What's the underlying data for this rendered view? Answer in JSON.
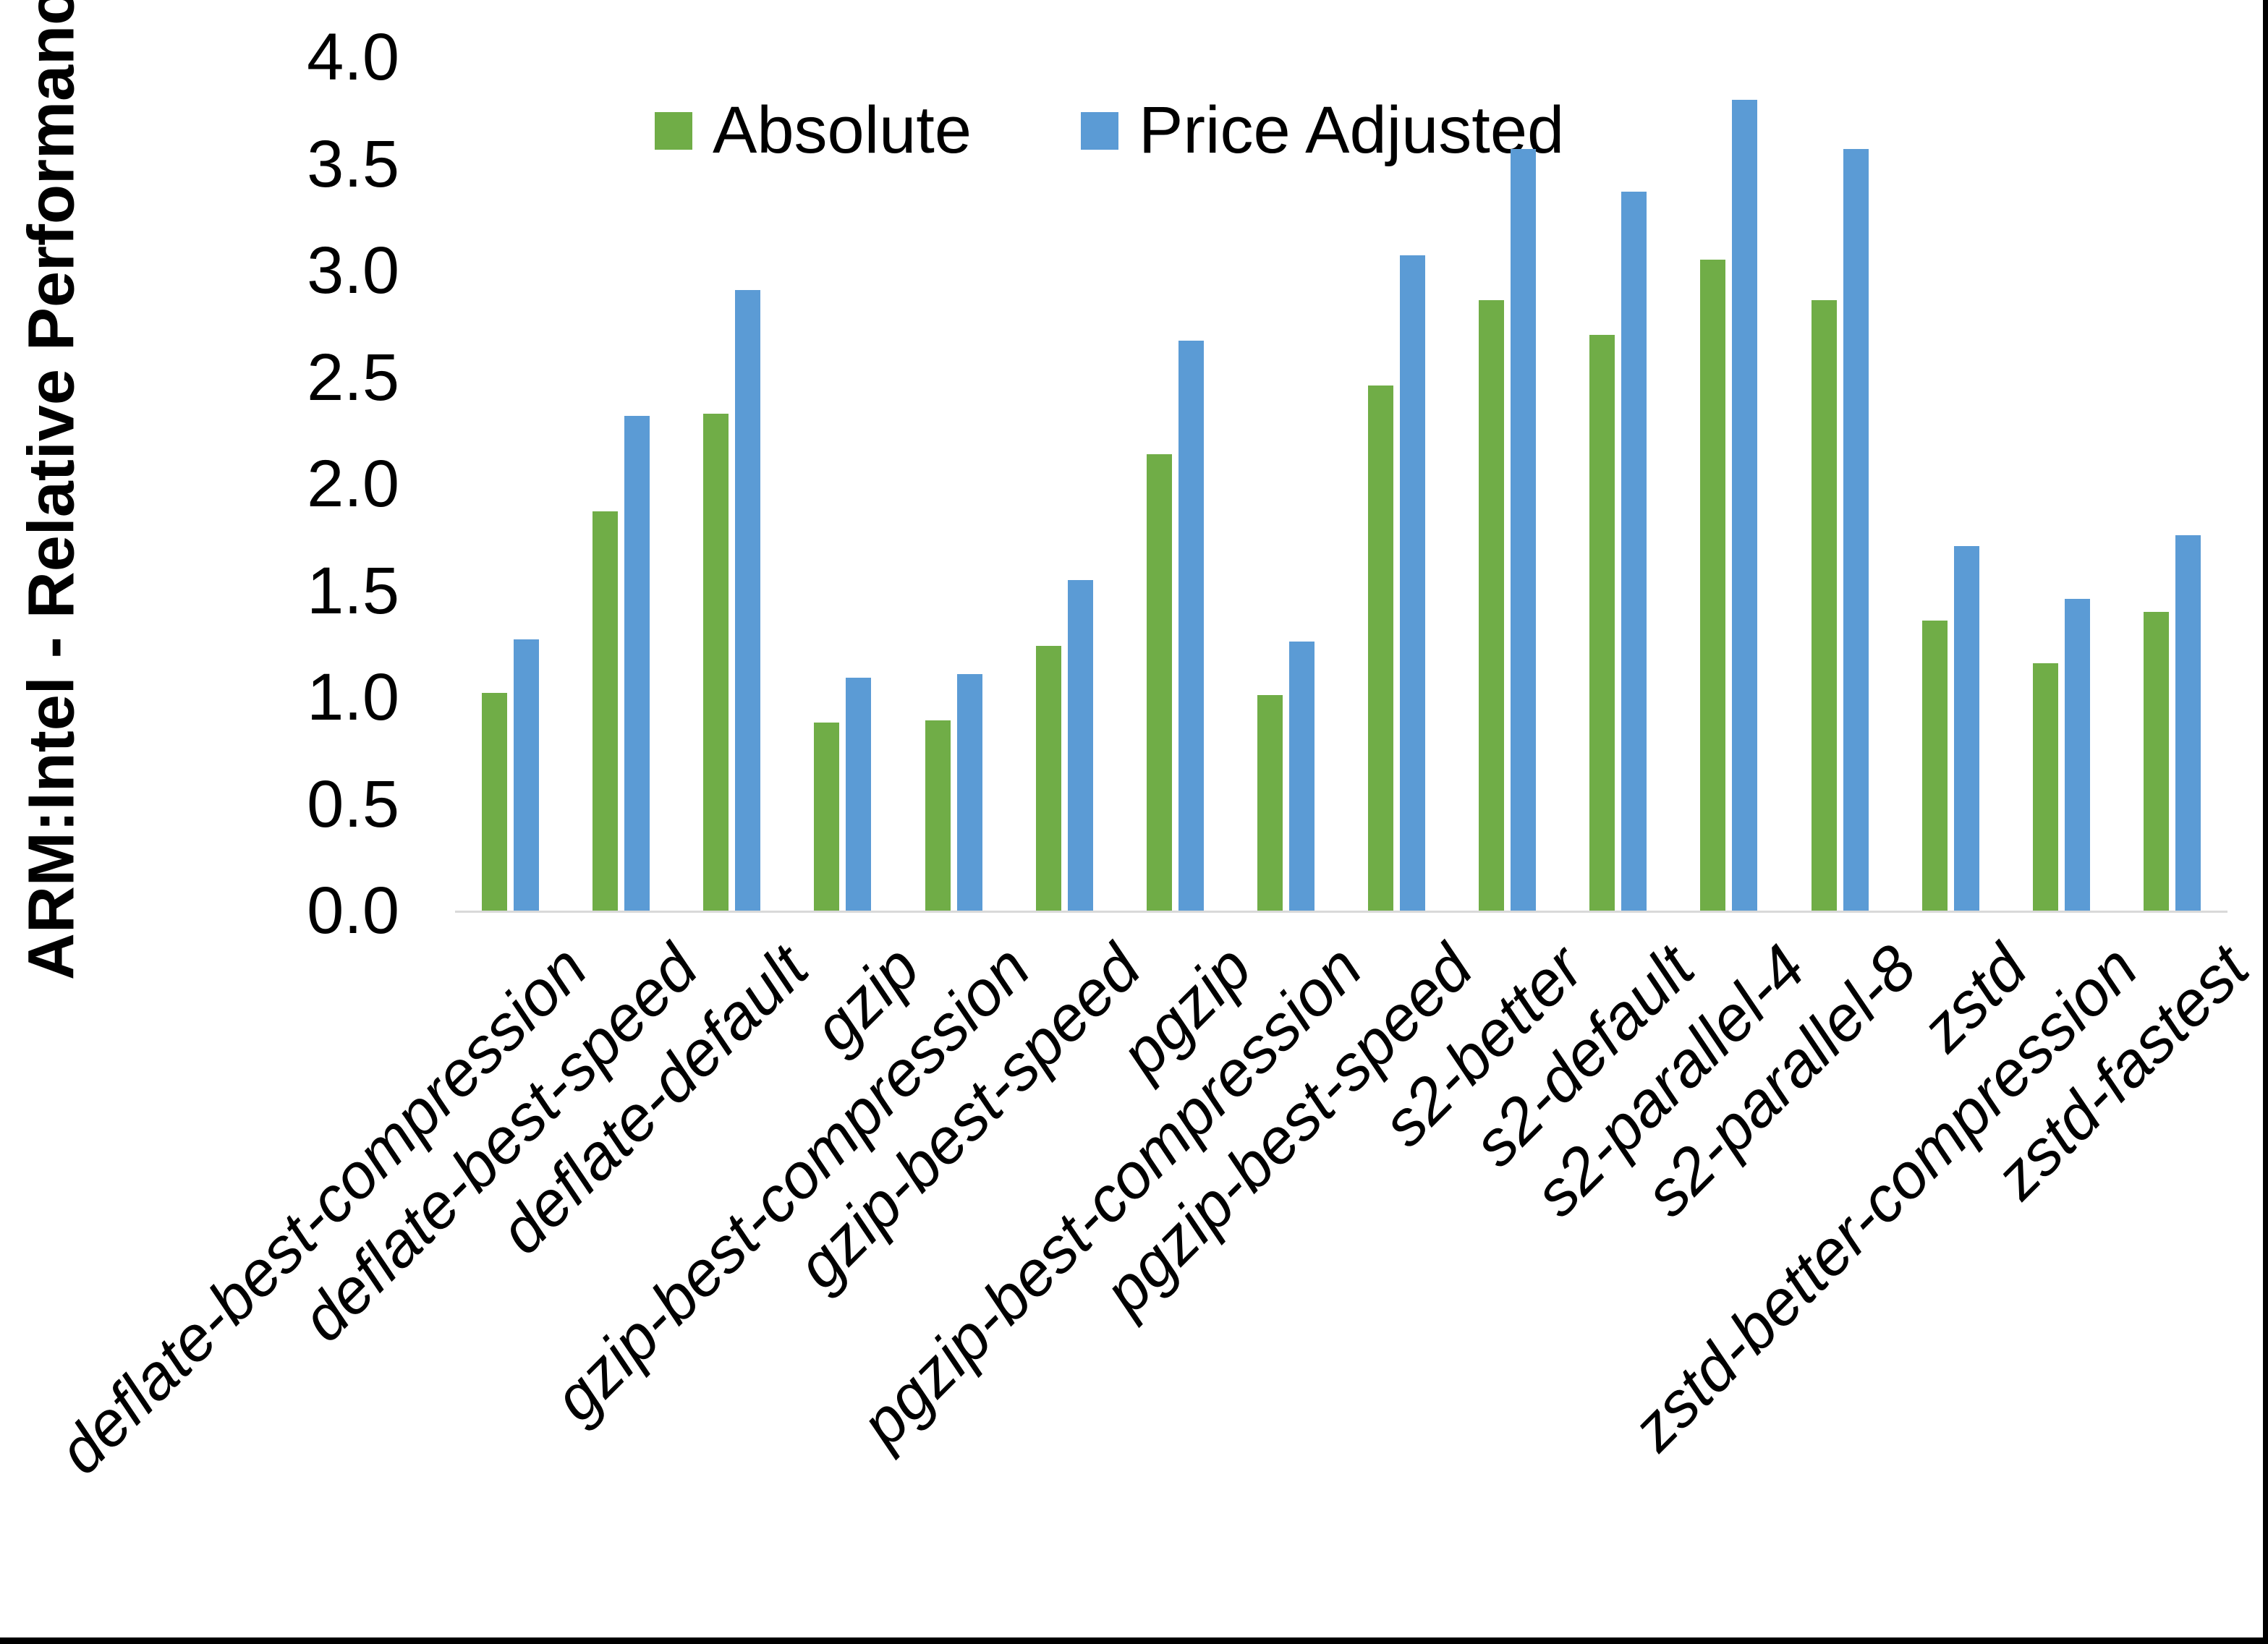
{
  "chart_data": {
    "type": "bar",
    "title": "",
    "xlabel": "",
    "ylabel": "ARM:Intel - Relative Performance",
    "ylim": [
      0.0,
      4.0
    ],
    "ytick_step": 0.5,
    "yticks": [
      "4.0",
      "3.5",
      "3.0",
      "2.5",
      "2.0",
      "1.5",
      "1.0",
      "0.5",
      "0.0"
    ],
    "grid": false,
    "legend_position": "top-center",
    "axis_line_color": "#d9d9d9",
    "categories": [
      "deflate-best-compression",
      "deflate-best-speed",
      "deflate-default",
      "gzip",
      "gzip-best-compression",
      "gzip-best-speed",
      "pgzip",
      "pgzip-best-compression",
      "pgzip-best-speed",
      "s2-better",
      "s2-default",
      "s2-parallel-4",
      "s2-parallel-8",
      "zstd",
      "zstd-better-compression",
      "zstd-fastest"
    ],
    "series": [
      {
        "name": "Absolute",
        "color": "#70AD47",
        "values": [
          1.02,
          1.87,
          2.33,
          0.88,
          0.89,
          1.24,
          2.14,
          1.01,
          2.46,
          2.86,
          2.7,
          3.05,
          2.86,
          1.36,
          1.16,
          1.4
        ]
      },
      {
        "name": "Price Adjusted",
        "color": "#5B9BD5",
        "values": [
          1.27,
          2.32,
          2.91,
          1.09,
          1.11,
          1.55,
          2.67,
          1.26,
          3.07,
          3.57,
          3.37,
          3.8,
          3.57,
          1.71,
          1.46,
          1.76
        ]
      }
    ]
  }
}
